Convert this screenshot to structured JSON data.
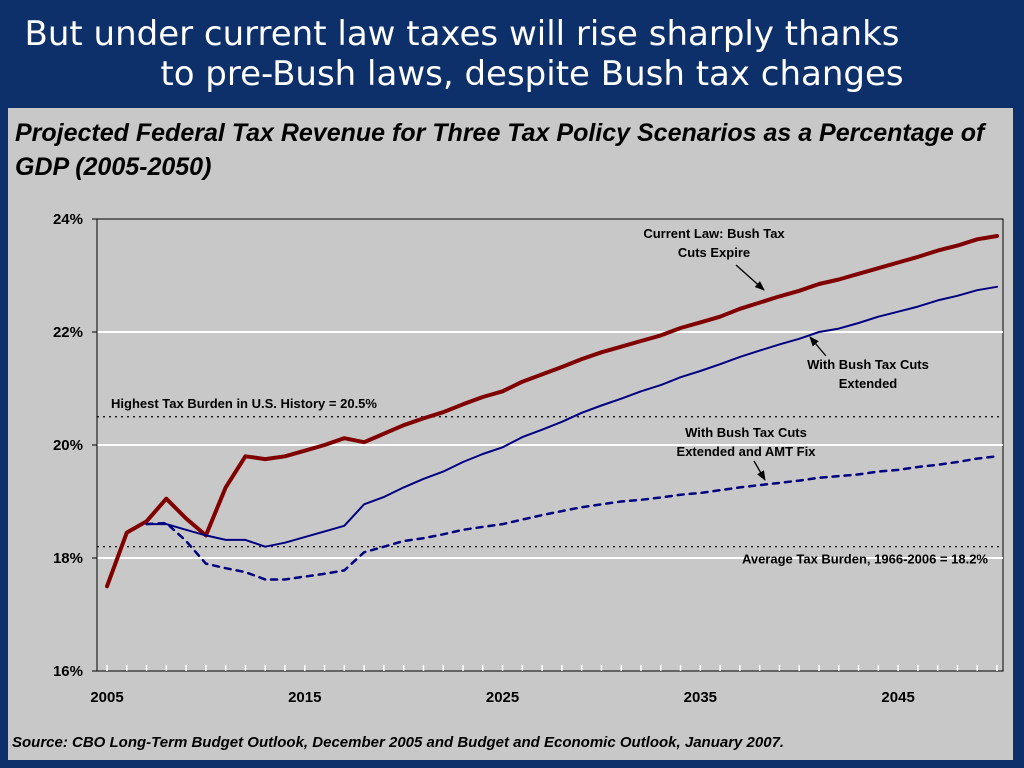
{
  "slide": {
    "title_line1": "But under current law taxes will rise sharply thanks",
    "title_line2": "to pre-Bush laws, despite Bush tax changes"
  },
  "chart_data": {
    "type": "line",
    "title": "Projected Federal Tax Revenue for Three Tax Policy Scenarios as a Percentage of GDP (2005-2050)",
    "xlabel": "",
    "ylabel": "",
    "xlim": [
      2005,
      2050
    ],
    "ylim": [
      16,
      24
    ],
    "x_ticks": [
      "2005",
      "2015",
      "2025",
      "2035",
      "2045"
    ],
    "y_ticks": [
      "16%",
      "18%",
      "20%",
      "22%",
      "24%"
    ],
    "grid": "horizontal",
    "colors": {
      "plot_bg": "#c8c8c8",
      "current_law": "#800000",
      "extended": "#000080",
      "amt_fix": "#000080",
      "gridline": "#ffffff"
    },
    "series": [
      {
        "id": "current_law",
        "style": "solid-thick",
        "x": [
          2005,
          2006,
          2007,
          2008,
          2009,
          2010,
          2011,
          2012,
          2013,
          2014,
          2015,
          2016,
          2017,
          2018,
          2019,
          2020,
          2021,
          2022,
          2023,
          2024,
          2025,
          2026,
          2027,
          2028,
          2029,
          2030,
          2031,
          2032,
          2033,
          2034,
          2035,
          2036,
          2037,
          2038,
          2039,
          2040,
          2041,
          2042,
          2043,
          2044,
          2045,
          2046,
          2047,
          2048,
          2049,
          2050
        ],
        "values": [
          17.5,
          18.45,
          18.65,
          19.05,
          18.7,
          18.4,
          19.25,
          19.8,
          19.75,
          19.8,
          19.9,
          20.0,
          20.12,
          20.05,
          20.2,
          20.35,
          20.47,
          20.58,
          20.72,
          20.85,
          20.95,
          21.12,
          21.25,
          21.38,
          21.52,
          21.64,
          21.74,
          21.84,
          21.94,
          22.07,
          22.17,
          22.27,
          22.41,
          22.52,
          22.63,
          22.73,
          22.85,
          22.93,
          23.03,
          23.13,
          23.23,
          23.33,
          23.44,
          23.53,
          23.64,
          23.7
        ]
      },
      {
        "id": "bush_extended",
        "style": "solid",
        "x": [
          2007,
          2008,
          2009,
          2010,
          2011,
          2012,
          2013,
          2014,
          2015,
          2016,
          2017,
          2018,
          2019,
          2020,
          2021,
          2022,
          2023,
          2024,
          2025,
          2026,
          2027,
          2028,
          2029,
          2030,
          2031,
          2032,
          2033,
          2034,
          2035,
          2036,
          2037,
          2038,
          2039,
          2040,
          2041,
          2042,
          2043,
          2044,
          2045,
          2046,
          2047,
          2048,
          2049,
          2050
        ],
        "values": [
          18.6,
          18.6,
          18.5,
          18.4,
          18.32,
          18.32,
          18.2,
          18.27,
          18.37,
          18.47,
          18.57,
          18.95,
          19.08,
          19.25,
          19.4,
          19.53,
          19.7,
          19.84,
          19.96,
          20.14,
          20.27,
          20.41,
          20.57,
          20.7,
          20.82,
          20.95,
          21.06,
          21.2,
          21.31,
          21.43,
          21.56,
          21.67,
          21.78,
          21.88,
          22.0,
          22.06,
          22.16,
          22.27,
          22.36,
          22.45,
          22.56,
          22.64,
          22.74,
          22.8
        ]
      },
      {
        "id": "amt_fix",
        "style": "dashed",
        "x": [
          2007,
          2008,
          2009,
          2010,
          2011,
          2012,
          2013,
          2014,
          2015,
          2016,
          2017,
          2018,
          2019,
          2020,
          2021,
          2022,
          2023,
          2024,
          2025,
          2026,
          2027,
          2028,
          2029,
          2030,
          2031,
          2032,
          2033,
          2034,
          2035,
          2036,
          2037,
          2038,
          2039,
          2040,
          2041,
          2042,
          2043,
          2044,
          2045,
          2046,
          2047,
          2048,
          2049,
          2050
        ],
        "values": [
          18.6,
          18.62,
          18.3,
          17.9,
          17.82,
          17.75,
          17.62,
          17.62,
          17.67,
          17.72,
          17.78,
          18.1,
          18.2,
          18.3,
          18.35,
          18.42,
          18.5,
          18.55,
          18.6,
          18.68,
          18.76,
          18.83,
          18.9,
          18.95,
          19.0,
          19.03,
          19.07,
          19.12,
          19.15,
          19.2,
          19.25,
          19.29,
          19.33,
          19.37,
          19.42,
          19.45,
          19.48,
          19.53,
          19.56,
          19.61,
          19.65,
          19.7,
          19.76,
          19.8
        ]
      }
    ],
    "reference_lines": [
      {
        "id": "highest_burden",
        "value": 20.5,
        "label": "Highest Tax Burden in U.S. History = 20.5%"
      },
      {
        "id": "average_burden",
        "value": 18.2,
        "label": "Average Tax Burden, 1966-2006 = 18.2%"
      }
    ],
    "annotations": [
      {
        "id": "current_law_label",
        "lines": [
          "Current Law: Bush Tax",
          "Cuts Expire"
        ]
      },
      {
        "id": "extended_label",
        "lines": [
          "With Bush Tax Cuts",
          "Extended"
        ]
      },
      {
        "id": "amt_label",
        "lines": [
          "With Bush Tax Cuts",
          "Extended and AMT Fix"
        ]
      }
    ]
  },
  "footer": {
    "source": "Source: CBO Long-Term Budget Outlook, December 2005 and Budget and Economic Outlook, January 2007."
  }
}
